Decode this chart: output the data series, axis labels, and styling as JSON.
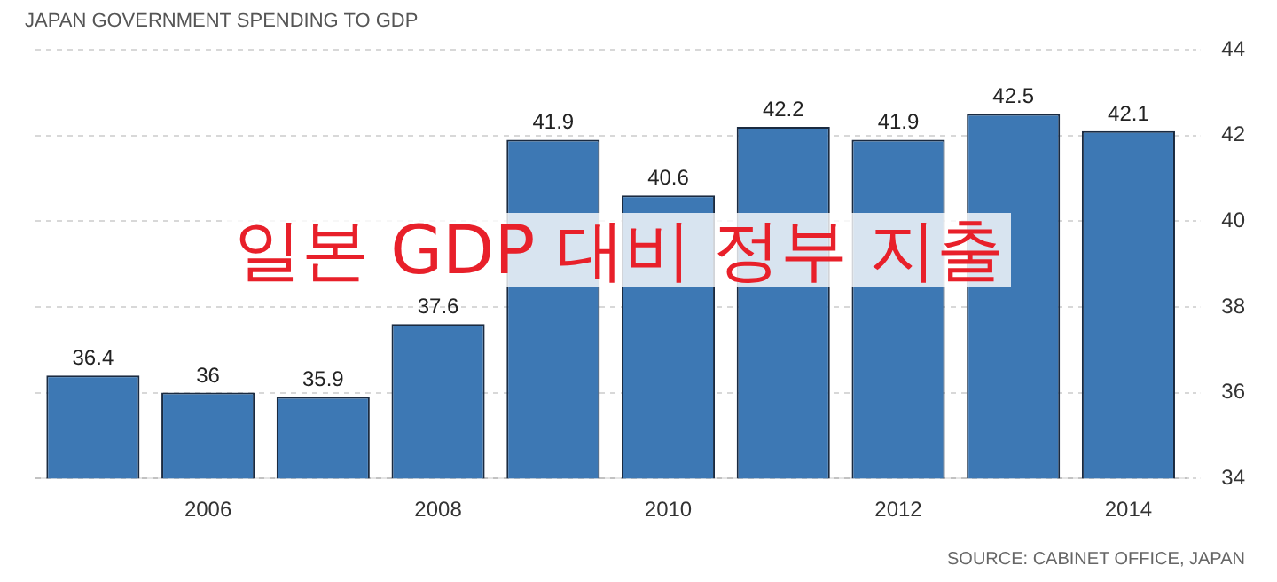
{
  "chart_data": {
    "type": "bar",
    "title": "JAPAN GOVERNMENT SPENDING TO GDP",
    "categories": [
      null,
      "2006",
      null,
      "2008",
      null,
      "2010",
      null,
      "2012",
      null,
      "2014"
    ],
    "values": [
      36.4,
      36,
      35.9,
      37.6,
      41.9,
      40.6,
      42.2,
      41.9,
      42.5,
      42.1
    ],
    "color": "#3d78b4",
    "ylim": [
      34,
      44
    ],
    "yticks": [
      34,
      36,
      38,
      40,
      42,
      44
    ],
    "grid": "y",
    "data_labels": true,
    "annotations": [
      "일본 GDP 대비 정부 지출",
      "SOURCE: CABINET OFFICE, JAPAN"
    ]
  }
}
